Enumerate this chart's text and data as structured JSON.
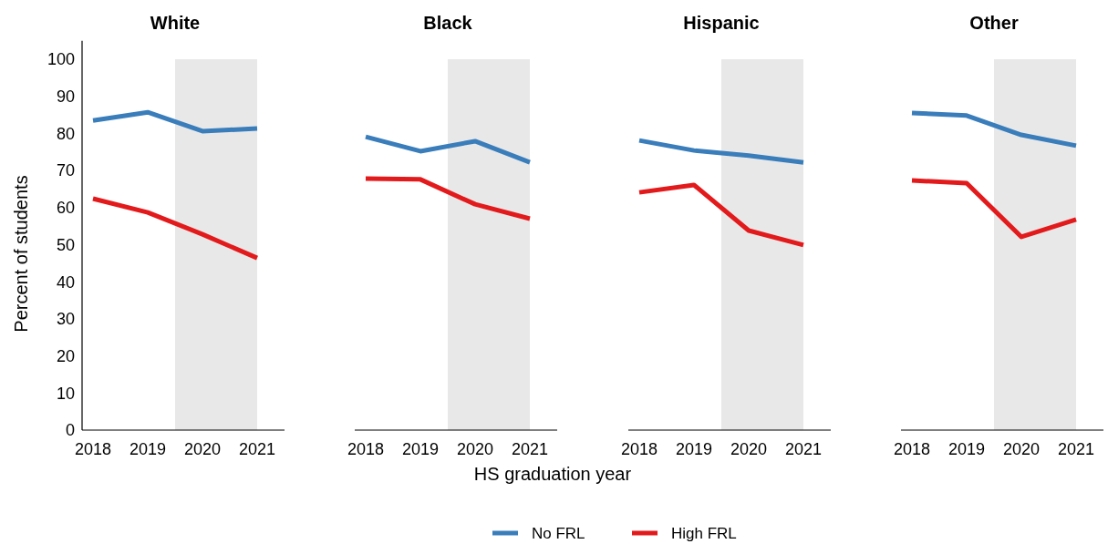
{
  "chart_data": [
    {
      "type": "line",
      "title": "White",
      "x": [
        2018,
        2019,
        2020,
        2021
      ],
      "xlim": [
        2017.8,
        2021.5
      ],
      "xticks": [
        2018,
        2019,
        2020,
        2021
      ],
      "ylim": [
        0,
        105
      ],
      "yticks": [
        0,
        10,
        20,
        30,
        40,
        50,
        60,
        70,
        80,
        90,
        100
      ],
      "ylabel": "Percent of students",
      "legend": "bottom",
      "grid": false,
      "bands": [
        {
          "axis": "x",
          "from": 2019.5,
          "to": 2021,
          "color": "#e8e8e8"
        }
      ],
      "series": [
        {
          "name": "No FRL",
          "color": "#3a7dbb",
          "values": [
            83.5,
            85.7,
            80.6,
            81.3
          ]
        },
        {
          "name": "High FRL",
          "color": "#e31a1c",
          "values": [
            62.4,
            58.7,
            52.8,
            46.4
          ]
        }
      ]
    },
    {
      "type": "line",
      "title": "Black",
      "xlabel": "HS graduation year",
      "x": [
        2018,
        2019,
        2020,
        2021
      ],
      "xlim": [
        2017.8,
        2021.5
      ],
      "xticks": [
        2018,
        2019,
        2020,
        2021
      ],
      "ylim": [
        0,
        100
      ],
      "yticks": [
        0,
        10,
        20,
        30,
        40,
        50,
        60,
        70,
        80,
        90,
        100
      ],
      "tick_labels": "x",
      "grid": false,
      "bands": [
        {
          "axis": "x",
          "from": 2019.5,
          "to": 2021,
          "color": "#e8e8e8"
        }
      ],
      "series": [
        {
          "color": "#3a7dbb",
          "values": [
            79.1,
            75.2,
            77.9,
            72.2
          ]
        },
        {
          "color": "#e31a1c",
          "values": [
            67.8,
            67.6,
            60.9,
            57.0
          ]
        }
      ]
    },
    {
      "type": "line",
      "title": "Hispanic",
      "x": [
        2018,
        2019,
        2020,
        2021
      ],
      "xlim": [
        2017.8,
        2021.5
      ],
      "xticks": [
        2018,
        2019,
        2020,
        2021
      ],
      "ylim": [
        0,
        100
      ],
      "yticks": [
        0,
        10,
        20,
        30,
        40,
        50,
        60,
        70,
        80,
        90,
        100
      ],
      "tick_labels": "x",
      "grid": false,
      "bands": [
        {
          "axis": "x",
          "from": 2019.5,
          "to": 2021,
          "color": "#e8e8e8"
        }
      ],
      "series": [
        {
          "color": "#3a7dbb",
          "values": [
            78.1,
            75.4,
            74.0,
            72.2
          ]
        },
        {
          "color": "#e31a1c",
          "values": [
            64.1,
            66.1,
            53.8,
            49.9
          ]
        }
      ]
    },
    {
      "type": "line",
      "title": "Other",
      "x": [
        2018,
        2019,
        2020,
        2021
      ],
      "xlim": [
        2017.8,
        2021.5
      ],
      "xticks": [
        2018,
        2019,
        2020,
        2021
      ],
      "ylim": [
        0,
        100
      ],
      "yticks": [
        0,
        10,
        20,
        30,
        40,
        50,
        60,
        70,
        80,
        90,
        100
      ],
      "tick_labels": "x",
      "grid": false,
      "bands": [
        {
          "axis": "x",
          "from": 2019.5,
          "to": 2021,
          "color": "#e8e8e8"
        }
      ],
      "series": [
        {
          "color": "#3a7dbb",
          "values": [
            85.5,
            84.8,
            79.6,
            76.7
          ]
        },
        {
          "color": "#e31a1c",
          "values": [
            67.3,
            66.6,
            52.1,
            56.8
          ]
        }
      ]
    }
  ]
}
